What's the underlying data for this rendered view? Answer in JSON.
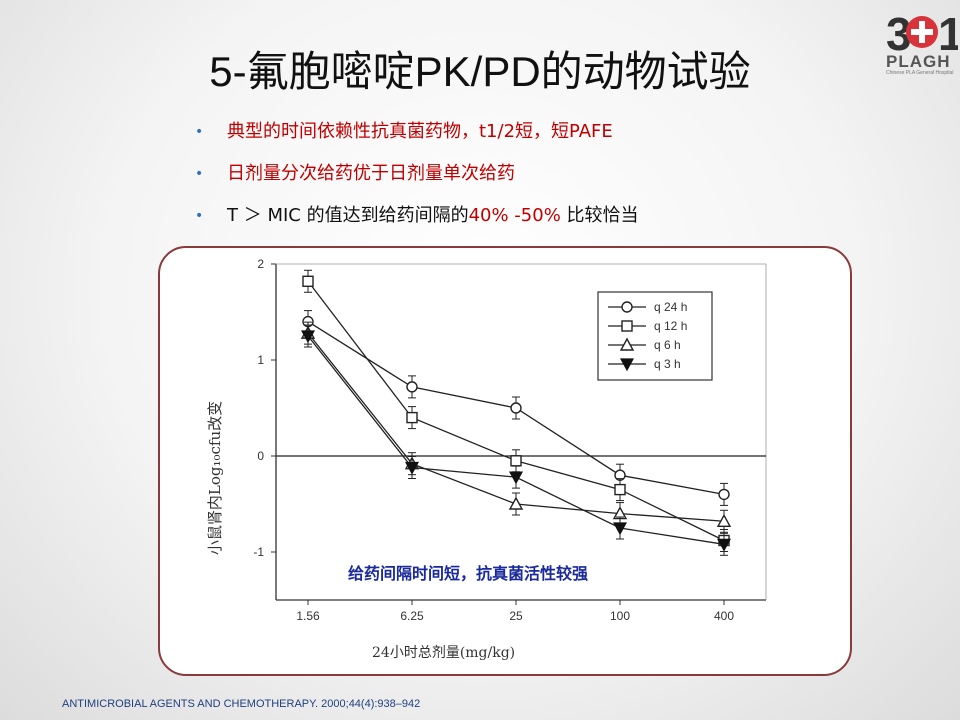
{
  "logo": {
    "text": "PLAGH",
    "subtext": "Chinese PLA General Hospital",
    "accent": "#d8333a"
  },
  "slide": {
    "title": "5-氟胞嘧啶PK/PD的动物试验",
    "bullets": [
      {
        "text": "典型的时间依赖性抗真菌药物，t1/2短，短PAFE",
        "color": "#c00000"
      },
      {
        "text": "日剂量分次给药优于日剂量单次给药",
        "color": "#c00000"
      },
      {
        "text_plain": "T ＞ MIC 的值达到给药间隔的",
        "text_red": "40% -50%",
        "text_end": " 比较恰当"
      }
    ],
    "citation": "ANTIMICROBIAL AGENTS AND CHEMOTHERAPY. 2000;44(4):938–942"
  },
  "chart_data": {
    "type": "line",
    "categories": [
      "1.56",
      "6.25",
      "25",
      "100",
      "400"
    ],
    "xlabel": "24小时总剂量(mg/kg)",
    "ylabel": "小鼠肾内Log₁₀cfu改变",
    "ylim": [
      -1.5,
      2
    ],
    "yticks": [
      "2",
      "1",
      "0",
      "-1"
    ],
    "reference_line": 0,
    "annotation": "给药间隔时间短，抗真菌活性较强",
    "legend": "top-right",
    "series": [
      {
        "name": "q 24 h",
        "marker": "circle",
        "values": [
          1.4,
          0.72,
          0.5,
          -0.2,
          -0.4
        ]
      },
      {
        "name": "q 12 h",
        "marker": "square",
        "values": [
          1.82,
          0.4,
          -0.05,
          -0.35,
          -0.88
        ]
      },
      {
        "name": "q 6 h",
        "marker": "triangle",
        "values": [
          1.28,
          -0.08,
          -0.5,
          -0.6,
          -0.68
        ]
      },
      {
        "name": "q 3 h",
        "marker": "triangle-down",
        "values": [
          1.25,
          -0.12,
          -0.22,
          -0.75,
          -0.92
        ]
      }
    ]
  }
}
